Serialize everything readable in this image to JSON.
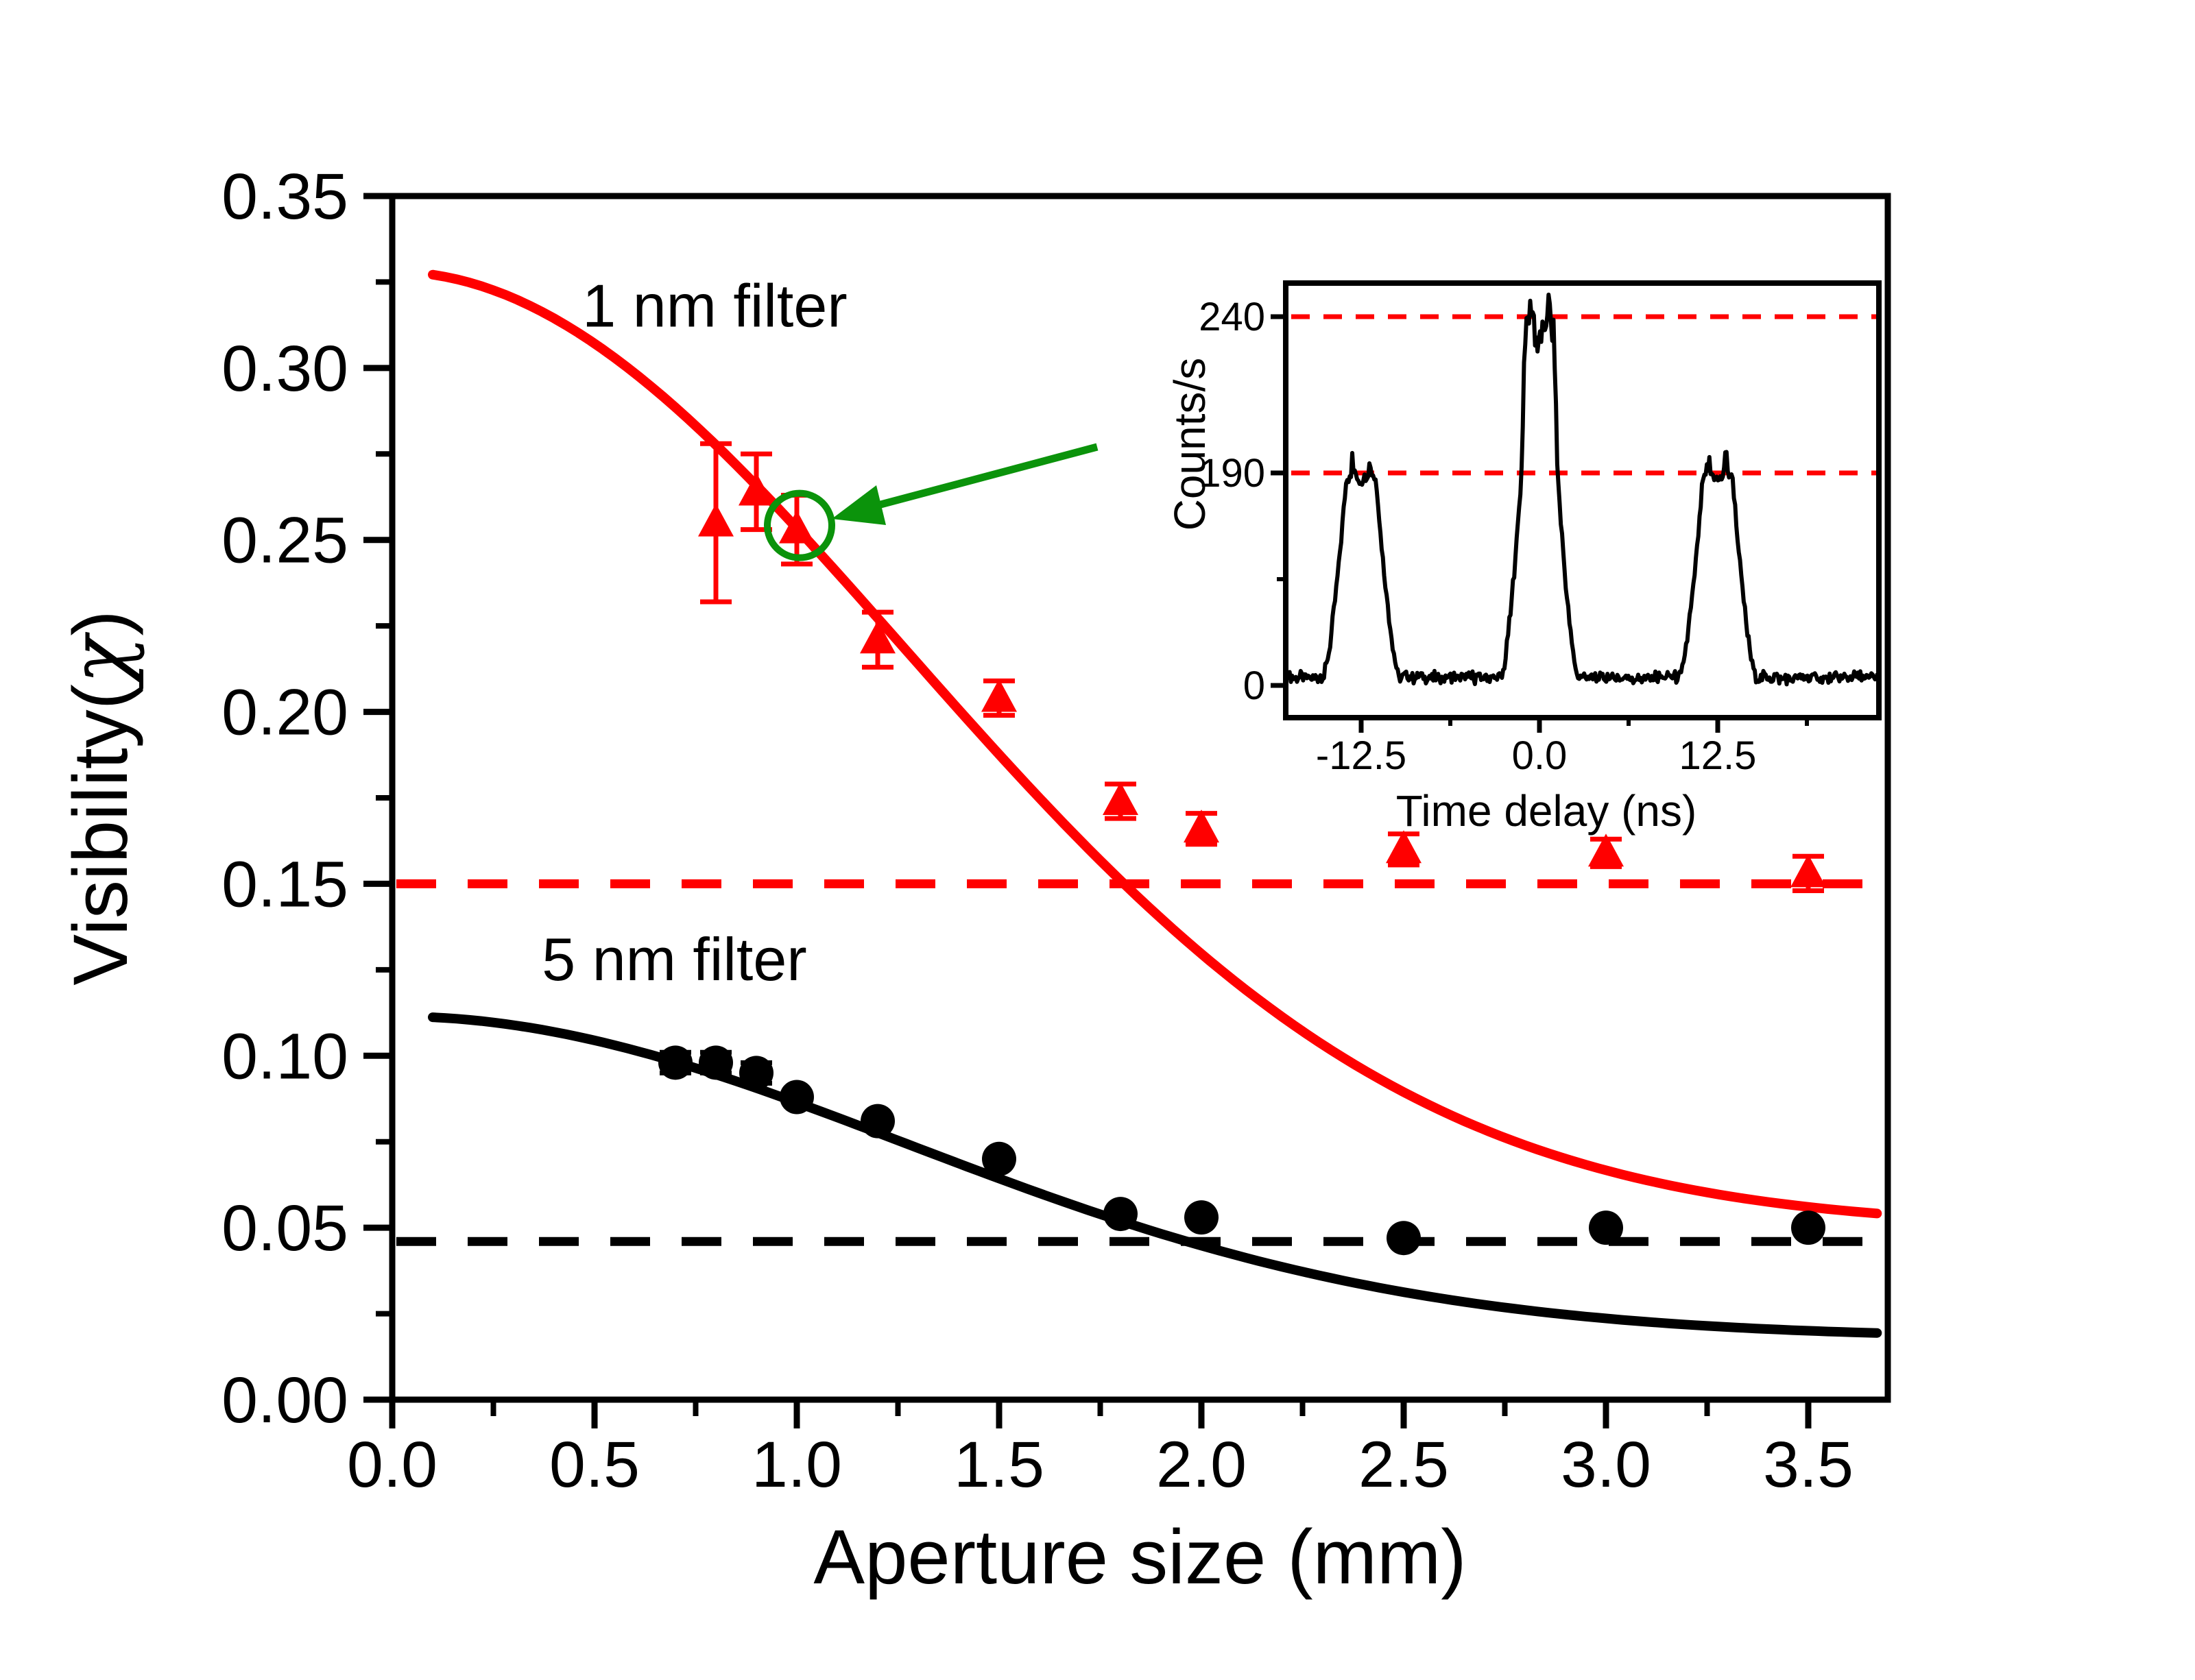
{
  "figure": {
    "background": "#FFFFFF",
    "colors": {
      "red": "#FF0000",
      "black": "#000000",
      "green": "#0B930B",
      "white": "#FFFFFF"
    }
  },
  "chart_data": [
    {
      "id": "main",
      "type": "scatter",
      "title": "",
      "xlabel": "Aperture size (mm)",
      "ylabel": "Visibility(χ)",
      "ylabel_parts": {
        "prefix": "Visibility(",
        "chi": "χ",
        "suffix": ")"
      },
      "xlim": [
        0,
        3.7
      ],
      "ylim": [
        0,
        0.35
      ],
      "grid": false,
      "legend_position": "none",
      "x_major": [
        0,
        0.5,
        1.0,
        1.5,
        2.0,
        2.5,
        3.0,
        3.5
      ],
      "x_major_labels": [
        "0.0",
        "0.5",
        "1.0",
        "1.5",
        "2.0",
        "2.5",
        "3.0",
        "3.5"
      ],
      "x_minor": [
        0.25,
        0.75,
        1.25,
        1.75,
        2.25,
        2.75,
        3.25
      ],
      "y_major": [
        0,
        0.05,
        0.1,
        0.15,
        0.2,
        0.25,
        0.3,
        0.35
      ],
      "y_major_labels": [
        "0.00",
        "0.05",
        "0.10",
        "0.15",
        "0.20",
        "0.25",
        "0.30",
        "0.35"
      ],
      "y_minor": [
        0.025,
        0.075,
        0.125,
        0.175,
        0.225,
        0.275,
        0.325
      ],
      "series": [
        {
          "name": "1 nm filter",
          "marker": "triangle",
          "color": "#FF0000",
          "label_x": 0.47,
          "label_y": 0.312,
          "x": [
            0.8,
            0.9,
            1.0,
            1.2,
            1.5,
            1.8,
            2.0,
            2.5,
            3.0,
            3.5
          ],
          "y": [
            0.255,
            0.264,
            0.253,
            0.221,
            0.204,
            0.174,
            0.166,
            0.16,
            0.159,
            0.153
          ],
          "yerr": [
            0.023,
            0.011,
            0.01,
            0.008,
            0.005,
            0.005,
            0.0045,
            0.0045,
            0.004,
            0.005
          ]
        },
        {
          "name": "5 nm filter",
          "marker": "circle",
          "color": "#000000",
          "label_x": 0.37,
          "label_y": 0.122,
          "x": [
            0.7,
            0.8,
            0.9,
            1.0,
            1.2,
            1.5,
            1.8,
            2.0,
            2.5,
            3.0,
            3.5
          ],
          "y": [
            0.098,
            0.098,
            0.095,
            0.088,
            0.081,
            0.07,
            0.054,
            0.053,
            0.047,
            0.05,
            0.05
          ],
          "yerr": [
            0.003,
            0.003,
            0.003,
            0,
            0,
            0,
            0,
            0,
            0,
            0,
            0
          ]
        }
      ],
      "fit_curves": [
        {
          "series": "1 nm filter",
          "color": "#FF0000",
          "model": "offset_gaussian",
          "offset": 0.05,
          "amplitude": 0.278,
          "width_param": 3.2,
          "x_range": [
            0.1,
            3.68
          ]
        },
        {
          "series": "5 nm filter",
          "color": "#000000",
          "model": "offset_gaussian",
          "offset": 0.018,
          "amplitude": 0.0935,
          "width_param": 3.2,
          "x_range": [
            0.1,
            3.68
          ]
        }
      ],
      "reference_lines": [
        {
          "y": 0.15,
          "style": "dashed",
          "color": "#FF0000"
        },
        {
          "y": 0.046,
          "style": "dashed",
          "color": "#000000"
        }
      ],
      "annotation": {
        "highlighted_point": {
          "series": "1 nm filter",
          "x": 1.0,
          "y": 0.253
        },
        "arrow_from_inset_to_point": true
      }
    },
    {
      "id": "inset",
      "type": "line",
      "xlabel": "Time delay (ns)",
      "ylabel": "Counts/s",
      "xlim": [
        -17.6,
        23.7
      ],
      "ylim": [
        0,
        255
      ],
      "grid": false,
      "x_major": [
        -12.5,
        0,
        12.5
      ],
      "x_major_labels": [
        "-12.5",
        "0.0",
        "12.5"
      ],
      "x_minor": [
        -6.25,
        6.25,
        18.75
      ],
      "y_major": [
        240,
        190,
        0
      ],
      "y_major_labels": [
        "240",
        "190",
        "0"
      ],
      "peaks": {
        "centers_ns": [
          -12.5,
          0,
          12.5
        ],
        "heights_counts": [
          190,
          240,
          190
        ],
        "baseline_counts": 7
      },
      "reference_lines": [
        {
          "y": 240,
          "style": "dashed",
          "color": "#FF0000"
        },
        {
          "y": 190,
          "style": "dashed",
          "color": "#FF0000"
        }
      ]
    }
  ]
}
